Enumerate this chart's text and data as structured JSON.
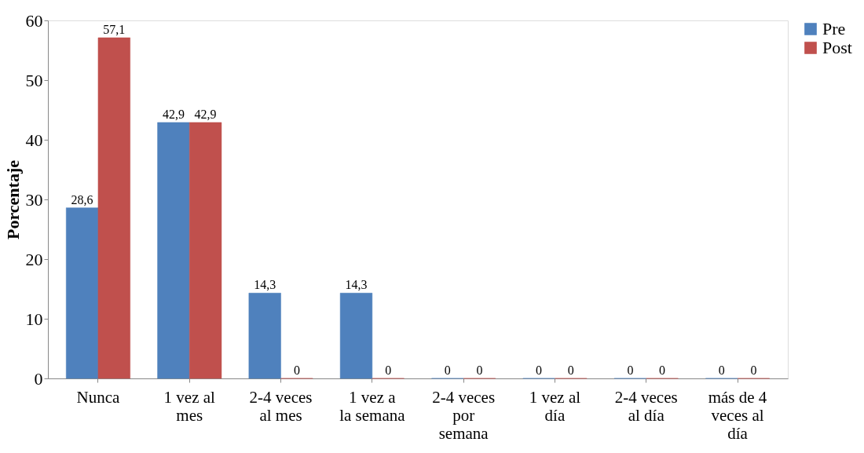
{
  "chart_data": {
    "type": "bar",
    "ylabel": "Porcentaje",
    "categories": [
      "Nunca",
      "1 vez al mes",
      "2-4 veces al mes",
      "1 vez a la semana",
      "2-4 veces por semana",
      "1 vez al día",
      "2-4 veces al día",
      "más de 4 veces al día"
    ],
    "series": [
      {
        "name": "Pre",
        "color": "#4f81bd",
        "values": [
          28.6,
          42.9,
          14.3,
          14.3,
          0,
          0,
          0,
          0
        ],
        "value_labels": [
          "28,6",
          "42,9",
          "14,3",
          "14,3",
          "0",
          "0",
          "0",
          "0"
        ]
      },
      {
        "name": "Post",
        "color": "#c0504d",
        "values": [
          57.1,
          42.9,
          0,
          0,
          0,
          0,
          0,
          0
        ],
        "value_labels": [
          "57,1",
          "42,9",
          "0",
          "0",
          "0",
          "0",
          "0",
          "0"
        ]
      }
    ],
    "ylim": [
      0,
      60
    ],
    "yticks": [
      0,
      10,
      20,
      30,
      40,
      50,
      60
    ],
    "grid": false,
    "legend": "right"
  }
}
